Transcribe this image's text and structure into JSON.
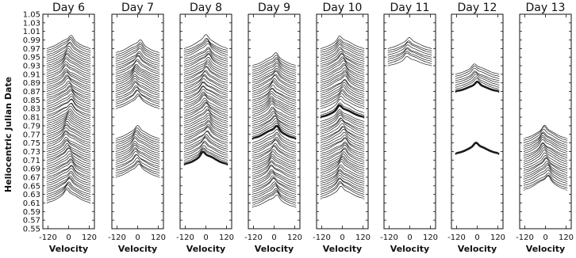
{
  "chart_data": {
    "type": "line",
    "ylabel": "Heliocentric Julian Date",
    "xlabel": "Velocity",
    "xlim": [
      -150,
      150
    ],
    "ylim": [
      0.55,
      1.05
    ],
    "xticks": [
      -120,
      0,
      120
    ],
    "xtick_labels": [
      "-120",
      "0",
      "120"
    ],
    "yticks": [
      0.55,
      0.57,
      0.59,
      0.61,
      0.63,
      0.65,
      0.67,
      0.69,
      0.71,
      0.73,
      0.75,
      0.77,
      0.79,
      0.81,
      0.83,
      0.85,
      0.87,
      0.89,
      0.91,
      0.93,
      0.95,
      0.97,
      0.99,
      1.01,
      1.03,
      1.05
    ],
    "ytick_labels": [
      "0.55",
      "0.57",
      "0.59",
      "0.61",
      "0.63",
      "0.65",
      "0.67",
      "0.69",
      "0.71",
      "0.73",
      "0.75",
      "0.77",
      "0.79",
      "0.81",
      "0.83",
      "0.85",
      "0.87",
      "0.89",
      "0.91",
      "0.93",
      "0.95",
      "0.97",
      "0.99",
      "1.01",
      "1.03",
      "1.05"
    ],
    "grid": false,
    "panels": [
      {
        "title": "Day 6",
        "blocks": [
          {
            "start": 0.61,
            "end": 0.97,
            "step": 0.005,
            "amp": 0.028,
            "thick": []
          }
        ]
      },
      {
        "title": "Day 7",
        "blocks": [
          {
            "start": 0.67,
            "end": 0.76,
            "step": 0.005,
            "amp": 0.028,
            "thick": []
          },
          {
            "start": 0.83,
            "end": 0.96,
            "step": 0.005,
            "amp": 0.028,
            "thick": []
          }
        ]
      },
      {
        "title": "Day 8",
        "blocks": [
          {
            "start": 0.7,
            "end": 0.97,
            "step": 0.005,
            "amp": 0.028,
            "thick": [
              0
            ]
          }
        ]
      },
      {
        "title": "Day 9",
        "blocks": [
          {
            "start": 0.6,
            "end": 0.75,
            "step": 0.005,
            "amp": 0.028,
            "thick": []
          },
          {
            "start": 0.76,
            "end": 0.93,
            "step": 0.005,
            "amp": 0.028,
            "thick": [
              0
            ]
          }
        ]
      },
      {
        "title": "Day 10",
        "blocks": [
          {
            "start": 0.62,
            "end": 0.8,
            "step": 0.005,
            "amp": 0.028,
            "thick": []
          },
          {
            "start": 0.81,
            "end": 0.82,
            "step": 0.005,
            "amp": 0.028,
            "thick": [
              0
            ]
          },
          {
            "start": 0.83,
            "end": 0.97,
            "step": 0.005,
            "amp": 0.028,
            "thick": []
          }
        ]
      },
      {
        "title": "Day 11",
        "blocks": [
          {
            "start": 0.93,
            "end": 0.97,
            "step": 0.005,
            "amp": 0.022,
            "thick": []
          }
        ]
      },
      {
        "title": "Day 12",
        "blocks": [
          {
            "start": 0.725,
            "end": 0.725,
            "step": 0.005,
            "amp": 0.022,
            "thick": [
              0
            ]
          },
          {
            "start": 0.87,
            "end": 0.91,
            "step": 0.005,
            "amp": 0.022,
            "thick": [
              0
            ]
          }
        ]
      },
      {
        "title": "Day 13",
        "blocks": [
          {
            "start": 0.64,
            "end": 0.76,
            "step": 0.005,
            "amp": 0.03,
            "thick": []
          }
        ]
      }
    ]
  }
}
